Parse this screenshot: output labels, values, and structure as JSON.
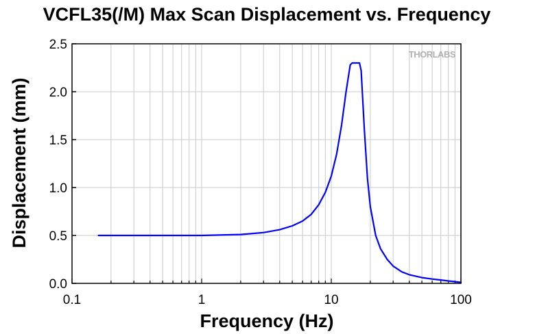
{
  "chart_data": {
    "type": "line",
    "title": "VCFL35(/M) Max Scan Displacement vs. Frequency",
    "xlabel": "Frequency (Hz)",
    "ylabel": "Displacement (mm)",
    "xscale": "log",
    "xlim": [
      0.1,
      100
    ],
    "ylim": [
      0,
      2.5
    ],
    "xticks": [
      0.1,
      1,
      10,
      100
    ],
    "xtick_labels": [
      "0.1",
      "1",
      "10",
      "100"
    ],
    "yticks": [
      0,
      0.5,
      1,
      1.5,
      2,
      2.5
    ],
    "ytick_labels": [
      "0.0",
      "0.5",
      "1.0",
      "1.5",
      "2.0",
      "2.5"
    ],
    "grid": true,
    "legend": "none",
    "watermark": "THORLABS",
    "series": [
      {
        "color": "#0000ff",
        "x": [
          0.16,
          0.3,
          1,
          2,
          3,
          4,
          5,
          6,
          7,
          8,
          9,
          10,
          11,
          12,
          13,
          14,
          14.5,
          15,
          16,
          16.5,
          17,
          18,
          19,
          20,
          22,
          24,
          27,
          30,
          35,
          40,
          50,
          60,
          70,
          80,
          90,
          100
        ],
        "y": [
          0.5,
          0.5,
          0.5,
          0.51,
          0.53,
          0.56,
          0.6,
          0.65,
          0.72,
          0.82,
          0.95,
          1.12,
          1.35,
          1.65,
          2.0,
          2.28,
          2.3,
          2.3,
          2.3,
          2.3,
          2.22,
          1.6,
          1.1,
          0.8,
          0.5,
          0.36,
          0.25,
          0.18,
          0.12,
          0.09,
          0.06,
          0.045,
          0.035,
          0.025,
          0.018,
          0.01
        ]
      }
    ]
  }
}
